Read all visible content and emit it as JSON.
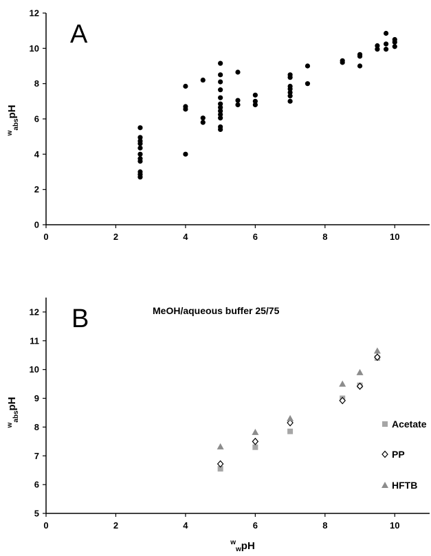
{
  "chart_data": [
    {
      "type": "scatter",
      "panel_label": "A",
      "title": "",
      "xlabel": "",
      "ylabel": {
        "sup": "w",
        "sub": "abs",
        "main": "pH"
      },
      "xlim": [
        0,
        11
      ],
      "ylim": [
        0,
        12
      ],
      "xticks": [
        0,
        2,
        4,
        6,
        8,
        10
      ],
      "yticks": [
        0,
        2,
        4,
        6,
        8,
        10,
        12
      ],
      "grid": false,
      "series": [
        {
          "marker": "circle",
          "color": "#000000",
          "points": [
            [
              2.7,
              2.7
            ],
            [
              2.7,
              2.85
            ],
            [
              2.7,
              3.0
            ],
            [
              2.7,
              3.6
            ],
            [
              2.7,
              3.75
            ],
            [
              2.7,
              4.0
            ],
            [
              2.7,
              4.35
            ],
            [
              2.7,
              4.6
            ],
            [
              2.7,
              4.75
            ],
            [
              2.7,
              4.95
            ],
            [
              2.7,
              5.5
            ],
            [
              4.0,
              4.0
            ],
            [
              4.0,
              6.55
            ],
            [
              4.0,
              6.7
            ],
            [
              4.0,
              7.85
            ],
            [
              4.5,
              5.8
            ],
            [
              4.5,
              6.05
            ],
            [
              4.5,
              8.2
            ],
            [
              5.0,
              5.4
            ],
            [
              5.0,
              5.55
            ],
            [
              5.0,
              6.05
            ],
            [
              5.0,
              6.25
            ],
            [
              5.0,
              6.45
            ],
            [
              5.0,
              6.65
            ],
            [
              5.0,
              6.85
            ],
            [
              5.0,
              7.2
            ],
            [
              5.0,
              7.65
            ],
            [
              5.0,
              8.1
            ],
            [
              5.0,
              8.5
            ],
            [
              5.0,
              9.15
            ],
            [
              5.5,
              6.8
            ],
            [
              5.5,
              7.05
            ],
            [
              5.5,
              8.65
            ],
            [
              6.0,
              6.8
            ],
            [
              6.0,
              7.0
            ],
            [
              6.0,
              7.35
            ],
            [
              7.0,
              7.0
            ],
            [
              7.0,
              7.3
            ],
            [
              7.0,
              7.5
            ],
            [
              7.0,
              7.7
            ],
            [
              7.0,
              7.85
            ],
            [
              7.0,
              8.35
            ],
            [
              7.0,
              8.5
            ],
            [
              7.5,
              8.0
            ],
            [
              7.5,
              9.0
            ],
            [
              8.5,
              9.2
            ],
            [
              8.5,
              9.3
            ],
            [
              9.0,
              9.0
            ],
            [
              9.0,
              9.55
            ],
            [
              9.0,
              9.65
            ],
            [
              9.5,
              9.95
            ],
            [
              9.5,
              10.15
            ],
            [
              9.75,
              9.95
            ],
            [
              9.75,
              10.25
            ],
            [
              9.75,
              10.85
            ],
            [
              10.0,
              10.1
            ],
            [
              10.0,
              10.35
            ],
            [
              10.0,
              10.5
            ]
          ]
        }
      ]
    },
    {
      "type": "scatter",
      "panel_label": "B",
      "title": "MeOH/aqueous buffer 25/75",
      "xlabel": {
        "sup": "w",
        "sub": "w",
        "main": "pH"
      },
      "ylabel": {
        "sup": "w",
        "sub": "abs",
        "main": "pH"
      },
      "xlim": [
        0,
        11
      ],
      "ylim": [
        5,
        12.5
      ],
      "xticks": [
        0,
        2,
        4,
        6,
        8,
        10
      ],
      "yticks": [
        5,
        6,
        7,
        8,
        9,
        10,
        11,
        12
      ],
      "grid": false,
      "legend": "right",
      "series": [
        {
          "name": "Acetate",
          "marker": "square",
          "color": "#a6a6a6",
          "points": [
            [
              5.0,
              6.55
            ],
            [
              6.0,
              7.3
            ],
            [
              7.0,
              7.85
            ],
            [
              8.5,
              9.0
            ],
            [
              9.0,
              9.45
            ],
            [
              9.5,
              10.4
            ]
          ]
        },
        {
          "name": "PP",
          "marker": "diamond-open",
          "color": "#000000",
          "points": [
            [
              5.0,
              6.72
            ],
            [
              6.0,
              7.5
            ],
            [
              7.0,
              8.15
            ],
            [
              8.5,
              8.92
            ],
            [
              9.0,
              9.42
            ],
            [
              9.5,
              10.43
            ]
          ]
        },
        {
          "name": "HFTB",
          "marker": "triangle",
          "color": "#8c8c8c",
          "points": [
            [
              5.0,
              7.32
            ],
            [
              6.0,
              7.82
            ],
            [
              7.0,
              8.3
            ],
            [
              8.5,
              9.5
            ],
            [
              9.0,
              9.9
            ],
            [
              9.5,
              10.65
            ]
          ]
        }
      ]
    }
  ]
}
